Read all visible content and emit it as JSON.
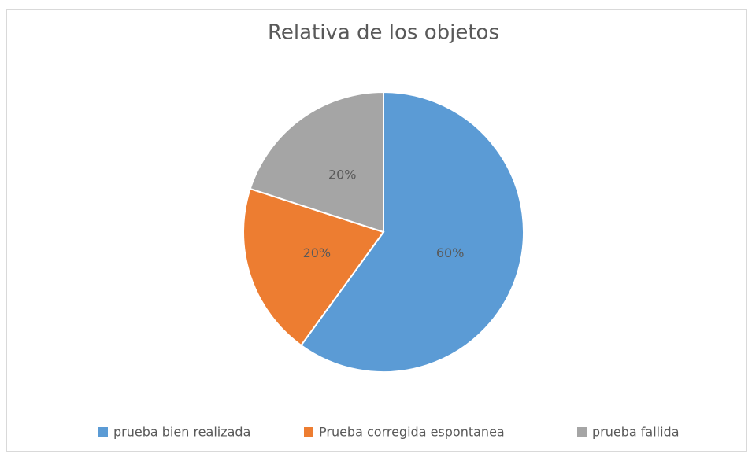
{
  "chart_data": {
    "type": "pie",
    "title": "Relativa de los objetos",
    "categories": [
      "prueba bien realizada",
      "Prueba corregida espontanea",
      "prueba fallida"
    ],
    "values": [
      60,
      20,
      20
    ],
    "value_labels": [
      "60%",
      "20%",
      "20%"
    ],
    "colors": [
      "#5b9bd5",
      "#ed7d31",
      "#a5a5a5"
    ],
    "legend": "bottom"
  }
}
